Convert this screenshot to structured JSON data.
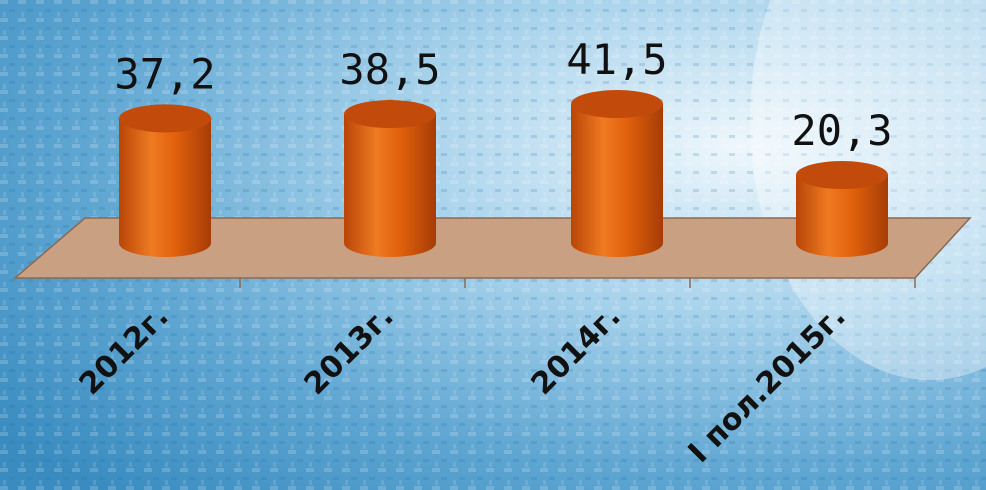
{
  "chart_data": {
    "type": "bar",
    "categories": [
      "2012г.",
      "2013г.",
      "2014г.",
      "I пол.2015г."
    ],
    "values": [
      37.2,
      38.5,
      41.5,
      20.3
    ],
    "value_labels": [
      "37,2",
      "38,5",
      "41,5",
      "20,3"
    ],
    "title": "",
    "xlabel": "",
    "ylabel": "",
    "ylim": [
      0,
      41.5
    ],
    "grid": false,
    "legend": "none",
    "style": "3d-cylinder",
    "colors": {
      "bar_body": "#E2620C",
      "bar_top": "#C24A0A",
      "floor": "#C9A081",
      "floor_edge": "#8A6A55",
      "background_light": "#CDE7F5",
      "background_mid": "#7DB8DB",
      "background_dark": "#2E7FB3"
    }
  }
}
